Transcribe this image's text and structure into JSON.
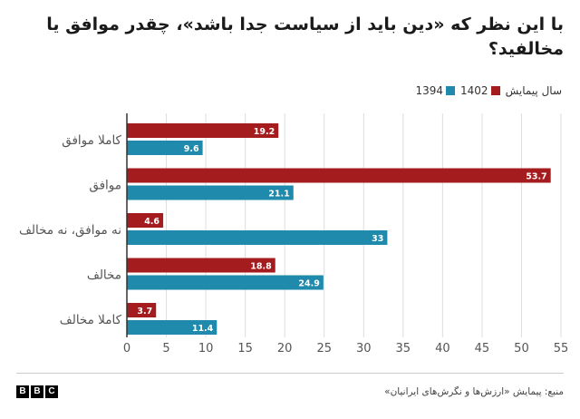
{
  "chart_data": {
    "type": "bar",
    "orientation": "horizontal",
    "title": "با این نظر که «دین باید از سیاست جدا باشد»، چقدر موافق یا مخالفید؟",
    "categories": [
      "کاملا موافق",
      "موافق",
      "نه موافق، نه مخالف",
      "مخالف",
      "کاملا مخالف"
    ],
    "series": [
      {
        "name": "1402",
        "color": "#a51c1e",
        "values": [
          19.2,
          53.7,
          4.6,
          18.8,
          3.7
        ],
        "labels": [
          "19.2",
          "53.7",
          "4.6",
          "18.8",
          "3.7"
        ]
      },
      {
        "name": "1394",
        "color": "#1f8aab",
        "values": [
          9.6,
          21.1,
          33,
          24.9,
          11.4
        ],
        "labels": [
          "9.6",
          "21.1",
          "33",
          "24.9",
          "11.4"
        ]
      }
    ],
    "legend_title": "سال پیمایش",
    "legend_position": "top-right",
    "xlim": [
      0,
      55
    ],
    "xticks": [
      "0",
      "5",
      "10",
      "15",
      "20",
      "25",
      "30",
      "35",
      "40",
      "45",
      "50",
      "55"
    ],
    "grid": true
  },
  "source": "منبع: پیمایش «ارزش‌ها و نگرش‌های ایرانیان»",
  "logo": [
    "B",
    "B",
    "C"
  ]
}
